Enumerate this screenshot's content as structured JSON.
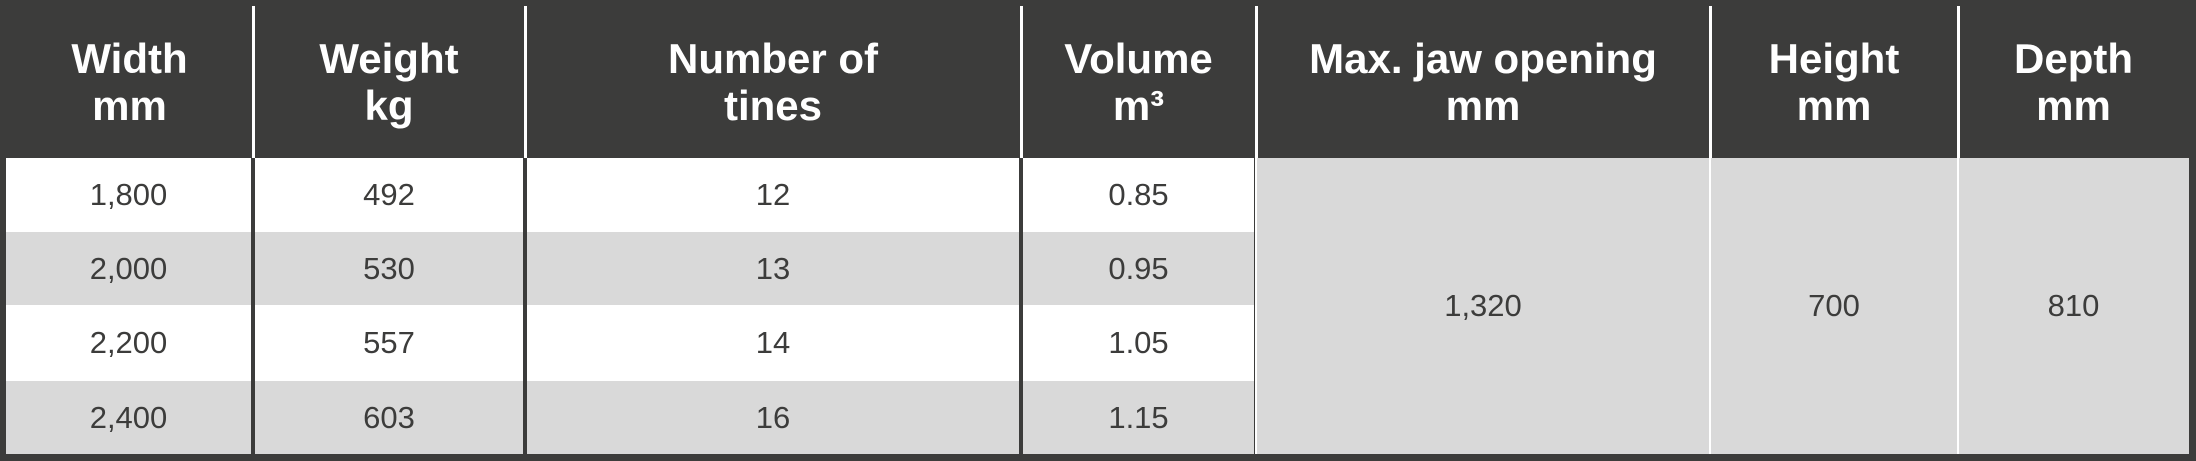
{
  "table": {
    "header": [
      [
        "Width",
        "mm"
      ],
      [
        "Weight",
        "kg"
      ],
      [
        "Number of",
        "tines"
      ],
      [
        "Volume",
        "m³"
      ],
      [
        "Max. jaw opening",
        "mm"
      ],
      [
        "Height",
        "mm"
      ],
      [
        "Depth",
        "mm"
      ]
    ],
    "rows": [
      [
        "1,800",
        "492",
        "12",
        "0.85"
      ],
      [
        "2,000",
        "530",
        "13",
        "0.95"
      ],
      [
        "2,200",
        "557",
        "14",
        "1.05"
      ],
      [
        "2,400",
        "603",
        "16",
        "1.15"
      ]
    ],
    "merged": [
      "1,320",
      "700",
      "810"
    ]
  }
}
